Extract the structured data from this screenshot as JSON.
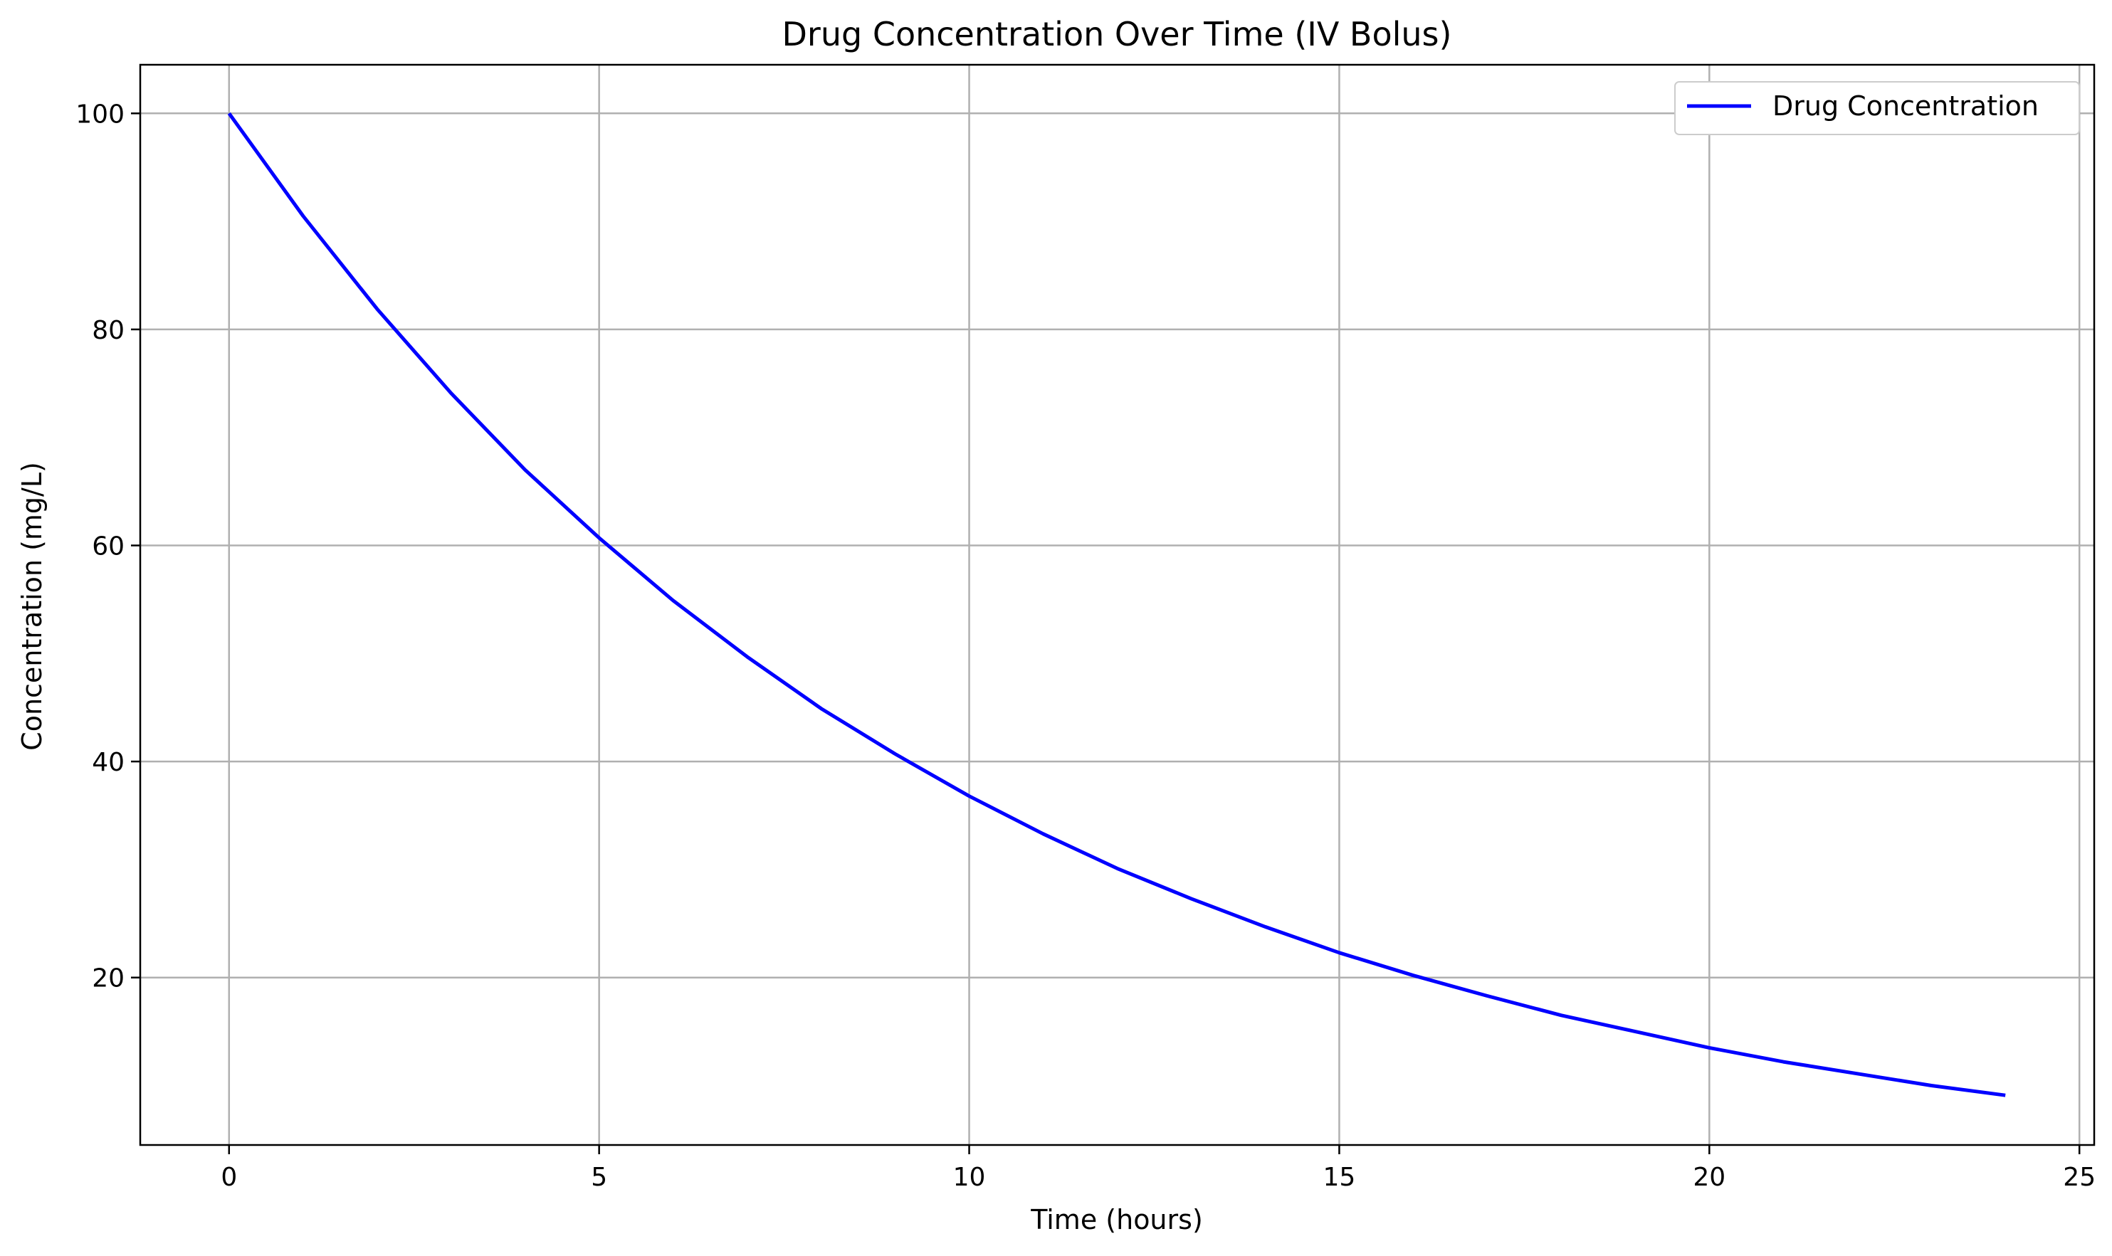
{
  "chart_data": {
    "type": "line",
    "title": "Drug Concentration Over Time (IV Bolus)",
    "xlabel": "Time (hours)",
    "ylabel": "Concentration (mg/L)",
    "xlim": [
      -1.2,
      25.2
    ],
    "ylim": [
      4.5,
      104.5
    ],
    "xticks": [
      0,
      5,
      10,
      15,
      20,
      25
    ],
    "yticks": [
      20,
      40,
      60,
      80,
      100
    ],
    "grid": true,
    "legend_position": "top-right",
    "series": [
      {
        "name": "Drug Concentration",
        "color": "#0000ff",
        "x": [
          0,
          1,
          2,
          3,
          4,
          5,
          6,
          7,
          8,
          9,
          10,
          11,
          12,
          13,
          14,
          15,
          16,
          17,
          18,
          19,
          20,
          21,
          22,
          23,
          24
        ],
        "y": [
          100.0,
          90.5,
          81.9,
          74.1,
          67.0,
          60.7,
          54.9,
          49.7,
          44.9,
          40.7,
          36.8,
          33.3,
          30.1,
          27.3,
          24.7,
          22.3,
          20.2,
          18.3,
          16.5,
          15.0,
          13.5,
          12.2,
          11.1,
          10.0,
          9.1
        ]
      }
    ]
  }
}
